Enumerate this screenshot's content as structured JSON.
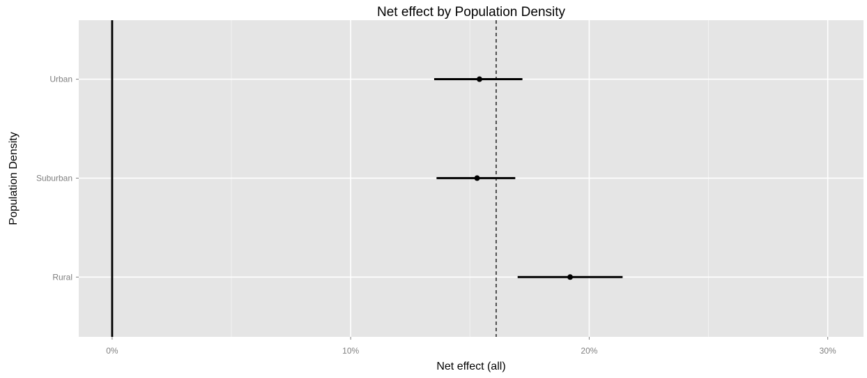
{
  "chart_data": {
    "type": "forest",
    "title": "Net effect by Population Density",
    "xlabel": "Net effect (all)",
    "ylabel": "Population Density",
    "xlim": [
      -0.014,
      0.315
    ],
    "x_ticks": [
      {
        "value": 0.0,
        "label": "0%"
      },
      {
        "value": 0.1,
        "label": "10%"
      },
      {
        "value": 0.2,
        "label": "20%"
      },
      {
        "value": 0.3,
        "label": "30%"
      }
    ],
    "x_minor_ticks": [
      0.05,
      0.15,
      0.25
    ],
    "categories": [
      "Urban",
      "Suburban",
      "Rural"
    ],
    "points": [
      {
        "category": "Urban",
        "estimate": 0.154,
        "lower": 0.135,
        "upper": 0.172
      },
      {
        "category": "Suburban",
        "estimate": 0.153,
        "lower": 0.136,
        "upper": 0.169
      },
      {
        "category": "Rural",
        "estimate": 0.192,
        "lower": 0.17,
        "upper": 0.214
      }
    ],
    "reference_lines": [
      {
        "value": 0.0,
        "style": "solid"
      },
      {
        "value": 0.161,
        "style": "dashed"
      }
    ],
    "grid": true,
    "legend": "none",
    "colors": {
      "panel_background": "#e5e5e5",
      "grid_major": "#ffffff",
      "grid_minor": "#f2f2f2",
      "marks": "#000000",
      "tick_label": "#7f7f7f"
    }
  }
}
